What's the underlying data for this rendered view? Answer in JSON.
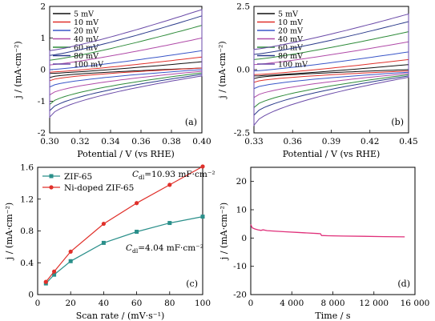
{
  "chart_data": [
    {
      "id": "a",
      "type": "line",
      "panel_label": "(a)",
      "xlabel": "Potential / V (vs RHE)",
      "ylabel": "j / (mA·cm⁻²)",
      "xlim": [
        0.3,
        0.4
      ],
      "ylim": [
        -2,
        2
      ],
      "xticks": [
        0.3,
        0.32,
        0.34,
        0.36,
        0.38,
        0.4
      ],
      "xtick_labels": [
        "0.30",
        "0.32",
        "0.34",
        "0.36",
        "0.38",
        "0.40"
      ],
      "yticks": [
        -2,
        -1,
        0,
        1,
        2
      ],
      "ytick_labels": [
        "-2",
        "-1",
        "0",
        "1",
        "2"
      ],
      "legend_position": "top-left",
      "grid": false,
      "curve_shape": "cyclic voltammetry loop",
      "series": [
        {
          "name": "5 mV",
          "color": "#111111",
          "upper_start": -0.12,
          "upper_end": 0.25,
          "lower_start": -0.25,
          "lower_end": 0.05
        },
        {
          "name": "10 mV",
          "color": "#e0302a",
          "upper_start": -0.08,
          "upper_end": 0.4,
          "lower_start": -0.35,
          "lower_end": 0.05
        },
        {
          "name": "20 mV",
          "color": "#3a56c8",
          "upper_start": 0.0,
          "upper_end": 0.6,
          "lower_start": -0.55,
          "lower_end": 0.0
        },
        {
          "name": "40 mV",
          "color": "#b04aa8",
          "upper_start": 0.15,
          "upper_end": 1.0,
          "lower_start": -0.8,
          "lower_end": -0.05
        },
        {
          "name": "60 mV",
          "color": "#2e8b3a",
          "upper_start": 0.3,
          "upper_end": 1.4,
          "lower_start": -1.1,
          "lower_end": -0.1
        },
        {
          "name": "80 mV",
          "color": "#2a3a8a",
          "upper_start": 0.45,
          "upper_end": 1.7,
          "lower_start": -1.3,
          "lower_end": -0.15
        },
        {
          "name": "100 mV",
          "color": "#6a4aa8",
          "upper_start": 0.6,
          "upper_end": 1.9,
          "lower_start": -1.5,
          "lower_end": -0.2
        }
      ]
    },
    {
      "id": "b",
      "type": "line",
      "panel_label": "(b)",
      "xlabel": "Potential / V (vs RHE)",
      "ylabel": "j / (mA·cm⁻²)",
      "xlim": [
        0.33,
        0.45
      ],
      "ylim": [
        -2.5,
        2.5
      ],
      "xticks": [
        0.33,
        0.36,
        0.39,
        0.42,
        0.45
      ],
      "xtick_labels": [
        "0.33",
        "0.36",
        "0.39",
        "0.42",
        "0.45"
      ],
      "yticks": [
        -2.5,
        0,
        2.5
      ],
      "ytick_labels": [
        "-2.5",
        "0.0",
        "2.5"
      ],
      "legend_position": "top-left",
      "grid": false,
      "curve_shape": "cyclic voltammetry loop",
      "series": [
        {
          "name": "5 mV",
          "color": "#111111",
          "upper_start": -0.25,
          "upper_end": 0.2,
          "lower_start": -0.35,
          "lower_end": 0.0
        },
        {
          "name": "10 mV",
          "color": "#e0302a",
          "upper_start": -0.2,
          "upper_end": 0.4,
          "lower_start": -0.5,
          "lower_end": -0.05
        },
        {
          "name": "20 mV",
          "color": "#3a56c8",
          "upper_start": -0.05,
          "upper_end": 0.7,
          "lower_start": -0.75,
          "lower_end": -0.1
        },
        {
          "name": "40 mV",
          "color": "#b04aa8",
          "upper_start": 0.2,
          "upper_end": 1.1,
          "lower_start": -1.1,
          "lower_end": -0.15
        },
        {
          "name": "60 mV",
          "color": "#2e8b3a",
          "upper_start": 0.4,
          "upper_end": 1.5,
          "lower_start": -1.5,
          "lower_end": -0.2
        },
        {
          "name": "80 mV",
          "color": "#2a3a8a",
          "upper_start": 0.6,
          "upper_end": 1.9,
          "lower_start": -1.8,
          "lower_end": -0.25
        },
        {
          "name": "100 mV",
          "color": "#6a4aa8",
          "upper_start": 0.8,
          "upper_end": 2.2,
          "lower_start": -2.2,
          "lower_end": -0.3
        }
      ]
    },
    {
      "id": "c",
      "type": "line",
      "panel_label": "(c)",
      "xlabel": "Scan rate / (mV·s⁻¹)",
      "ylabel": "j / (mA·cm⁻²)",
      "xlim": [
        0,
        100
      ],
      "ylim": [
        0,
        1.6
      ],
      "xticks": [
        0,
        20,
        40,
        60,
        80,
        100
      ],
      "xtick_labels": [
        "0",
        "20",
        "40",
        "60",
        "80",
        "100"
      ],
      "yticks": [
        0,
        0.4,
        0.8,
        1.2,
        1.6
      ],
      "ytick_labels": [
        "0",
        "0.4",
        "0.8",
        "1.2",
        "1.6"
      ],
      "legend_position": "top-left",
      "grid": false,
      "x": [
        5,
        10,
        20,
        40,
        60,
        80,
        100
      ],
      "series": [
        {
          "name": "ZIF-65",
          "color": "#2a8f8a",
          "marker": "square",
          "values": [
            0.14,
            0.25,
            0.42,
            0.65,
            0.79,
            0.9,
            0.98
          ]
        },
        {
          "name": "Ni-doped ZIF-65",
          "color": "#e0302a",
          "marker": "circle",
          "values": [
            0.16,
            0.29,
            0.54,
            0.89,
            1.15,
            1.38,
            1.61
          ]
        }
      ],
      "annotations": [
        {
          "prefix": "C",
          "sub": "dl",
          "text": "=10.93 mF·cm⁻²"
        },
        {
          "prefix": "C",
          "sub": "dl",
          "text": "=4.04 mF·cm⁻²"
        }
      ]
    },
    {
      "id": "d",
      "type": "line",
      "panel_label": "(d)",
      "xlabel": "Time / s",
      "ylabel": "j / (mA·cm⁻²)",
      "xlim": [
        0,
        16000
      ],
      "ylim": [
        -20,
        25
      ],
      "xticks": [
        0,
        4000,
        8000,
        12000,
        16000
      ],
      "xtick_labels": [
        "0",
        "4 000",
        "8 000",
        "12 000",
        "16 000"
      ],
      "yticks": [
        -20,
        -10,
        0,
        10,
        20
      ],
      "ytick_labels": [
        "-20",
        "-10",
        "0",
        "10",
        "20"
      ],
      "grid": false,
      "series": [
        {
          "name": "",
          "color": "#e0307a",
          "x": [
            0,
            150,
            400,
            700,
            1000,
            1200,
            1600,
            2500,
            3500,
            4500,
            5500,
            6500,
            6800,
            6900,
            7500,
            9000,
            11000,
            13000,
            15000
          ],
          "values": [
            4.8,
            3.6,
            3.2,
            2.9,
            2.7,
            2.9,
            2.6,
            2.4,
            2.2,
            2.0,
            1.8,
            1.6,
            1.5,
            0.9,
            0.8,
            0.7,
            0.6,
            0.5,
            0.4
          ]
        }
      ]
    }
  ]
}
